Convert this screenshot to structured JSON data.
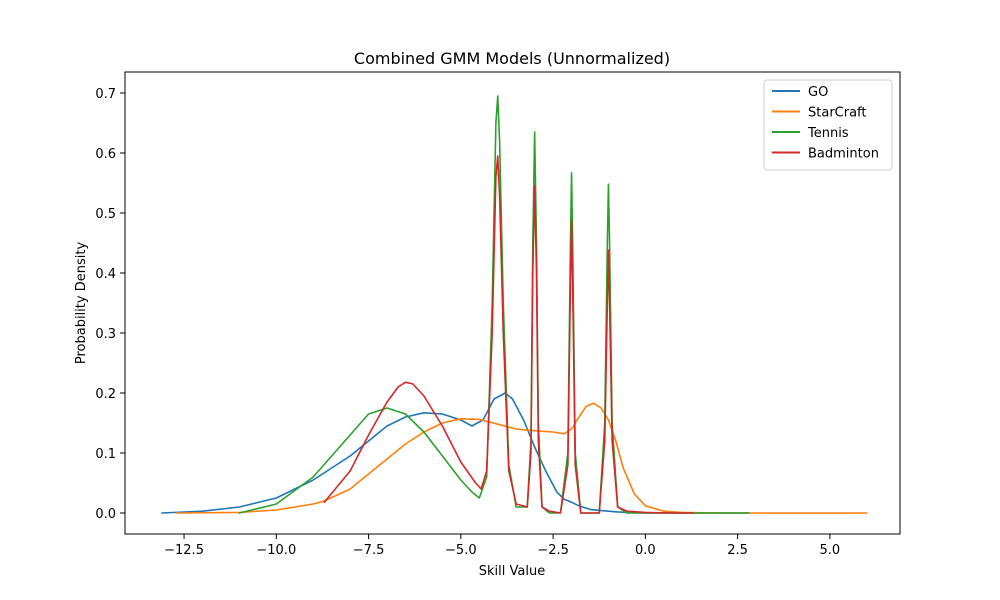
{
  "chart_data": {
    "type": "line",
    "title": "Combined GMM Models (Unnormalized)",
    "xlabel": "Skill Value",
    "ylabel": "Probability Density",
    "xlim": [
      -14.1,
      6.9
    ],
    "ylim": [
      -0.035,
      0.735
    ],
    "xticks": [
      -12.5,
      -10.0,
      -7.5,
      -5.0,
      -2.5,
      0.0,
      2.5,
      5.0
    ],
    "xtick_labels": [
      "−12.5",
      "−10.0",
      "−7.5",
      "−5.0",
      "−2.5",
      "0.0",
      "2.5",
      "5.0"
    ],
    "yticks": [
      0.0,
      0.1,
      0.2,
      0.3,
      0.4,
      0.5,
      0.6,
      0.7
    ],
    "ytick_labels": [
      "0.0",
      "0.1",
      "0.2",
      "0.3",
      "0.4",
      "0.5",
      "0.6",
      "0.7"
    ],
    "grid": false,
    "legend_position": "top-right",
    "series": [
      {
        "name": "GO",
        "color": "#1f77b4",
        "x": [
          -13.1,
          -12.0,
          -11.0,
          -10.0,
          -9.0,
          -8.0,
          -7.5,
          -7.0,
          -6.5,
          -6.0,
          -5.5,
          -5.0,
          -4.7,
          -4.4,
          -4.1,
          -3.8,
          -3.6,
          -3.3,
          -3.0,
          -2.7,
          -2.4,
          -2.2,
          -2.0,
          -1.8,
          -1.5,
          -1.2,
          -1.0,
          -0.8,
          -0.5,
          0.0,
          1.0,
          2.0,
          2.8
        ],
        "y": [
          0.0,
          0.003,
          0.01,
          0.025,
          0.055,
          0.095,
          0.12,
          0.145,
          0.16,
          0.167,
          0.165,
          0.155,
          0.145,
          0.155,
          0.19,
          0.2,
          0.19,
          0.155,
          0.11,
          0.07,
          0.035,
          0.023,
          0.018,
          0.012,
          0.006,
          0.004,
          0.003,
          0.002,
          0.001,
          0.0,
          0.0,
          0.0,
          0.0
        ]
      },
      {
        "name": "StarCraft",
        "color": "#ff7f0e",
        "x": [
          -12.7,
          -11.0,
          -10.0,
          -9.0,
          -8.7,
          -8.0,
          -7.5,
          -7.0,
          -6.5,
          -6.0,
          -5.5,
          -5.0,
          -4.5,
          -4.0,
          -3.5,
          -3.0,
          -2.5,
          -2.2,
          -2.0,
          -1.8,
          -1.6,
          -1.4,
          -1.2,
          -1.0,
          -0.8,
          -0.6,
          -0.3,
          0.0,
          0.5,
          1.0,
          2.0,
          3.0,
          4.0,
          5.0,
          6.0
        ],
        "y": [
          0.0,
          0.001,
          0.005,
          0.015,
          0.02,
          0.04,
          0.065,
          0.09,
          0.115,
          0.135,
          0.15,
          0.157,
          0.156,
          0.148,
          0.14,
          0.137,
          0.135,
          0.132,
          0.14,
          0.16,
          0.178,
          0.183,
          0.175,
          0.155,
          0.12,
          0.075,
          0.032,
          0.012,
          0.003,
          0.001,
          0.0,
          0.0,
          0.0,
          0.0,
          0.0
        ]
      },
      {
        "name": "Tennis",
        "color": "#2ca02c",
        "x": [
          -11.0,
          -10.0,
          -9.0,
          -8.0,
          -7.5,
          -7.0,
          -6.5,
          -6.0,
          -5.5,
          -5.0,
          -4.7,
          -4.5,
          -4.3,
          -4.15,
          -4.05,
          -4.0,
          -3.95,
          -3.85,
          -3.7,
          -3.5,
          -3.2,
          -3.1,
          -3.05,
          -3.0,
          -2.95,
          -2.9,
          -2.8,
          -2.6,
          -2.3,
          -2.1,
          -2.03,
          -2.0,
          -1.97,
          -1.9,
          -1.75,
          -1.5,
          -1.25,
          -1.1,
          -1.03,
          -1.0,
          -0.97,
          -0.9,
          -0.75,
          -0.5,
          0.0,
          1.0,
          2.0,
          2.8
        ],
        "y": [
          0.0,
          0.015,
          0.06,
          0.13,
          0.165,
          0.175,
          0.165,
          0.135,
          0.095,
          0.055,
          0.035,
          0.025,
          0.06,
          0.35,
          0.65,
          0.695,
          0.62,
          0.35,
          0.08,
          0.01,
          0.01,
          0.12,
          0.45,
          0.635,
          0.45,
          0.15,
          0.01,
          0.0,
          0.0,
          0.1,
          0.45,
          0.567,
          0.45,
          0.1,
          0.0,
          0.0,
          0.0,
          0.15,
          0.45,
          0.548,
          0.45,
          0.15,
          0.01,
          0.0,
          0.0,
          0.0,
          0.0,
          0.0
        ]
      },
      {
        "name": "Badminton",
        "color": "#d62728",
        "x": [
          -8.7,
          -8.0,
          -7.5,
          -7.0,
          -6.7,
          -6.5,
          -6.3,
          -6.0,
          -5.5,
          -5.0,
          -4.6,
          -4.45,
          -4.3,
          -4.15,
          -4.05,
          -4.0,
          -3.95,
          -3.85,
          -3.7,
          -3.5,
          -3.2,
          -3.1,
          -3.05,
          -3.0,
          -2.95,
          -2.9,
          -2.8,
          -2.6,
          -2.3,
          -2.1,
          -2.03,
          -2.0,
          -1.97,
          -1.9,
          -1.75,
          -1.5,
          -1.25,
          -1.1,
          -1.03,
          -1.0,
          -0.97,
          -0.9,
          -0.75,
          -0.5,
          0.0,
          0.7,
          1.3
        ],
        "y": [
          0.018,
          0.07,
          0.13,
          0.185,
          0.21,
          0.218,
          0.215,
          0.195,
          0.145,
          0.085,
          0.05,
          0.04,
          0.07,
          0.3,
          0.56,
          0.595,
          0.53,
          0.3,
          0.07,
          0.015,
          0.01,
          0.1,
          0.4,
          0.545,
          0.4,
          0.12,
          0.01,
          0.003,
          0.0,
          0.08,
          0.38,
          0.487,
          0.38,
          0.08,
          0.0,
          0.0,
          0.0,
          0.12,
          0.35,
          0.438,
          0.35,
          0.12,
          0.01,
          0.003,
          0.001,
          0.0,
          0.0
        ]
      }
    ]
  }
}
